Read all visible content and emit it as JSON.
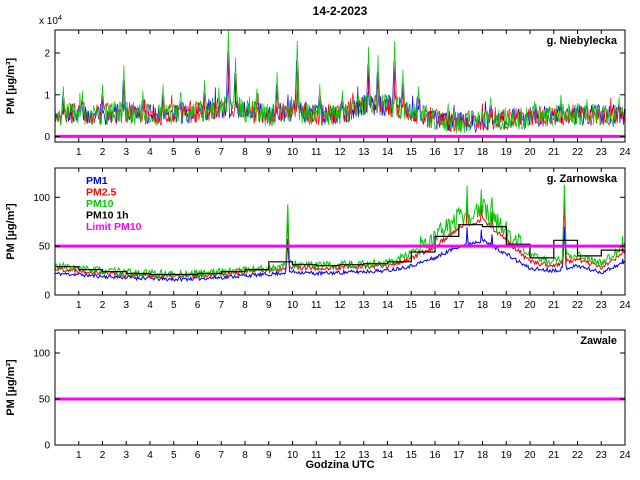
{
  "figure": {
    "title": "14-2-2023",
    "xlabel": "Godzina UTC",
    "ylabel": "PM [µg/m³]",
    "background": "#ffffff"
  },
  "colors": {
    "pm1": "#0000ff",
    "pm25": "#ff0000",
    "pm10": "#00cc00",
    "pm10_1h": "#000000",
    "limit": "#ff00ff",
    "axis": "#000000"
  },
  "chart_data": [
    {
      "type": "line",
      "station": "g. Niebylecka",
      "ylabel": "PM [µg/m³]",
      "y_exponent": "x 10",
      "y_exponent_sup": "4",
      "xlim": [
        0,
        24
      ],
      "ylim": [
        -1300,
        25500
      ],
      "xticks": [
        1,
        2,
        3,
        4,
        5,
        6,
        7,
        8,
        9,
        10,
        11,
        12,
        13,
        14,
        15,
        16,
        17,
        18,
        19,
        20,
        21,
        22,
        23,
        24
      ],
      "yticks": [
        0,
        10000,
        20000
      ],
      "ytick_labels": [
        "0",
        "1",
        "2"
      ],
      "sample_step": 0.03,
      "spike_width": 0.09,
      "line_width": 0.7,
      "hourly_base": [
        5200,
        5600,
        5200,
        5800,
        5200,
        5400,
        5800,
        7000,
        6200,
        5200,
        6200,
        5200,
        5200,
        7500,
        7500,
        6000,
        4200,
        3400,
        3800,
        4200,
        4600,
        5000,
        5200,
        5200,
        5000
      ],
      "series": [
        {
          "name": "PM1",
          "color": "#0000ff",
          "seed": 101,
          "noise": 2600,
          "tail_p": 0.06,
          "tail_mag": 5200,
          "spike_scale": 0.8,
          "x_offset": -0.03
        },
        {
          "name": "PM2.5",
          "color": "#ff0000",
          "seed": 202,
          "noise": 2600,
          "tail_p": 0.06,
          "tail_mag": 5200,
          "spike_scale": 0.78,
          "x_offset": 0.03
        },
        {
          "name": "PM10",
          "color": "#00cc00",
          "seed": 303,
          "noise": 2800,
          "tail_p": 0.08,
          "tail_mag": 6000,
          "spike_scale": 1.0,
          "x_offset": 0
        }
      ],
      "spikes": [
        {
          "x": 0.35,
          "y": 12000
        },
        {
          "x": 1.15,
          "y": 11000
        },
        {
          "x": 2.0,
          "y": 12500
        },
        {
          "x": 2.9,
          "y": 17000
        },
        {
          "x": 3.7,
          "y": 11000
        },
        {
          "x": 4.55,
          "y": 12500
        },
        {
          "x": 5.3,
          "y": 10500
        },
        {
          "x": 6.3,
          "y": 13500
        },
        {
          "x": 7.3,
          "y": 25500
        },
        {
          "x": 7.6,
          "y": 19000
        },
        {
          "x": 8.5,
          "y": 11500
        },
        {
          "x": 9.35,
          "y": 15500
        },
        {
          "x": 10.2,
          "y": 22800
        },
        {
          "x": 11.15,
          "y": 12500
        },
        {
          "x": 12.1,
          "y": 11000
        },
        {
          "x": 13.2,
          "y": 21500
        },
        {
          "x": 13.6,
          "y": 19500
        },
        {
          "x": 14.3,
          "y": 22800
        },
        {
          "x": 14.65,
          "y": 16000
        },
        {
          "x": 15.3,
          "y": 12000
        },
        {
          "x": 18.35,
          "y": 9500
        },
        {
          "x": 20.2,
          "y": 8500
        },
        {
          "x": 21.3,
          "y": 10000
        },
        {
          "x": 22.4,
          "y": 9000
        },
        {
          "x": 23.75,
          "y": 9500
        }
      ],
      "limit": {
        "label": "Limit PM10",
        "value": 50,
        "color": "#ff00ff"
      }
    },
    {
      "type": "line",
      "station": "g. Zarnowska",
      "ylabel": "PM [µg/m³]",
      "xlim": [
        0,
        24
      ],
      "ylim": [
        0,
        130
      ],
      "xticks": [
        1,
        2,
        3,
        4,
        5,
        6,
        7,
        8,
        9,
        10,
        11,
        12,
        13,
        14,
        15,
        16,
        17,
        18,
        19,
        20,
        21,
        22,
        23,
        24
      ],
      "yticks": [
        0,
        50,
        100
      ],
      "ytick_labels": [
        "0",
        "50",
        "100"
      ],
      "sample_step": 0.04,
      "spike_width": 0.12,
      "line_width": 1,
      "series": [
        {
          "name": "PM1",
          "color": "#0000ff",
          "seed": 11,
          "noise": 2,
          "spike_scale": 0.62,
          "hourly": [
            22,
            21,
            19,
            18,
            17,
            16,
            17,
            18,
            20,
            21,
            24,
            22,
            23,
            24,
            25,
            30,
            38,
            50,
            56,
            42,
            27,
            25,
            30,
            23,
            34
          ]
        },
        {
          "name": "PM2.5",
          "color": "#ff0000",
          "seed": 22,
          "noise": 2.5,
          "spike_scale": 0.85,
          "hourly": [
            27,
            25,
            23,
            21,
            20,
            19,
            20,
            22,
            24,
            25,
            29,
            27,
            28,
            29,
            30,
            37,
            50,
            68,
            78,
            56,
            34,
            30,
            37,
            28,
            44
          ]
        },
        {
          "name": "PM10",
          "color": "#00cc00",
          "seed": 33,
          "noise": 4,
          "spike_scale": 1.0,
          "noise_boost": {
            "from": 15.3,
            "to": 19.6,
            "factor": 3
          },
          "hourly": [
            30,
            27,
            25,
            23,
            22,
            21,
            22,
            24,
            26,
            27,
            32,
            30,
            31,
            32,
            33,
            42,
            58,
            78,
            88,
            65,
            40,
            34,
            42,
            32,
            52
          ]
        }
      ],
      "stair": {
        "name": "PM10 1h",
        "color": "#000000",
        "values": [
          29,
          26,
          24,
          22,
          21,
          21,
          22,
          24,
          26,
          34,
          31,
          30,
          31,
          32,
          34,
          44,
          60,
          72,
          70,
          52,
          38,
          56,
          40,
          46
        ]
      },
      "spikes": [
        {
          "x": 9.8,
          "y": 92
        },
        {
          "x": 17.35,
          "y": 112
        },
        {
          "x": 17.95,
          "y": 108
        },
        {
          "x": 18.4,
          "y": 100
        },
        {
          "x": 21.45,
          "y": 113
        },
        {
          "x": 23.9,
          "y": 60
        }
      ],
      "legend_items": [
        {
          "label": "PM1",
          "color": "#0000ff"
        },
        {
          "label": "PM2.5",
          "color": "#ff0000"
        },
        {
          "label": "PM10",
          "color": "#00cc00"
        },
        {
          "label": "PM10 1h",
          "color": "#000000"
        },
        {
          "label": "Limit PM10",
          "color": "#ff00ff"
        }
      ],
      "limit": {
        "label": "Limit PM10",
        "value": 50,
        "color": "#ff00ff"
      }
    },
    {
      "type": "line",
      "station": "Zawale",
      "ylabel": "PM [µg/m³]",
      "xlabel": "Godzina UTC",
      "xlim": [
        0,
        24
      ],
      "ylim": [
        0,
        125
      ],
      "xticks": [
        1,
        2,
        3,
        4,
        5,
        6,
        7,
        8,
        9,
        10,
        11,
        12,
        13,
        14,
        15,
        16,
        17,
        18,
        19,
        20,
        21,
        22,
        23,
        24
      ],
      "yticks": [
        0,
        50,
        100
      ],
      "ytick_labels": [
        "0",
        "50",
        "100"
      ],
      "sample_step": 0.1,
      "spike_width": 0.1,
      "line_width": 1,
      "series": [],
      "limit": {
        "label": "Limit PM10",
        "value": 50,
        "color": "#ff00ff"
      }
    }
  ]
}
